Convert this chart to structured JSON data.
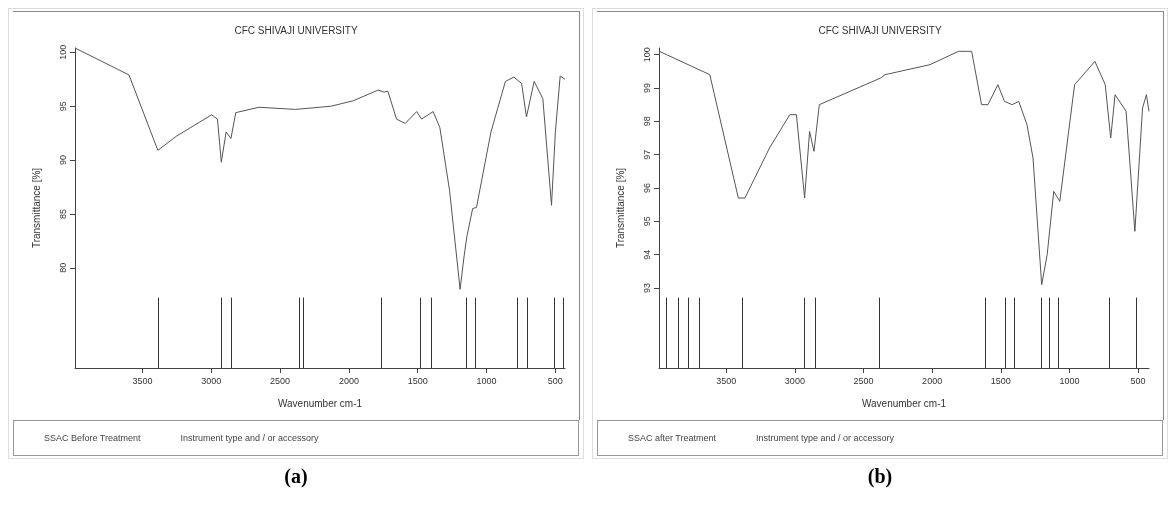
{
  "chart_data": [
    {
      "type": "line",
      "title": "CFC SHIVAJI UNIVERSITY",
      "xlabel": "Wavenumber cm-1",
      "ylabel": "Transmittance [%]",
      "color": "#555555",
      "grid": false,
      "marker": "none",
      "x": [
        3990,
        3598,
        3388,
        3255,
        2997,
        2955,
        2927,
        2892,
        2857,
        2822,
        2654,
        2388,
        2129,
        1969,
        1787,
        1745,
        1717,
        1654,
        1591,
        1507,
        1472,
        1388,
        1339,
        1269,
        1192,
        1164,
        1143,
        1101,
        1073,
        968,
        863,
        801,
        745,
        710,
        654,
        591,
        528,
        500,
        465,
        430
      ],
      "values": [
        100.4,
        97.9,
        90.9,
        92.2,
        94.2,
        93.8,
        89.8,
        92.6,
        92.0,
        94.4,
        94.9,
        94.7,
        95.0,
        95.5,
        96.5,
        96.3,
        96.4,
        93.8,
        93.4,
        94.5,
        93.8,
        94.5,
        93.0,
        87.2,
        78.0,
        81.0,
        82.9,
        85.5,
        85.6,
        92.6,
        97.3,
        97.7,
        97.1,
        94.0,
        97.3,
        95.7,
        85.8,
        92.6,
        97.8,
        97.5
      ],
      "xlim": [
        3990,
        430
      ],
      "xticks": [
        3500,
        3000,
        2500,
        2000,
        1500,
        1000,
        500
      ],
      "ylim": [
        70.7,
        100.4
      ],
      "yticks": [
        100,
        95,
        90,
        85,
        80
      ],
      "ref_lines": [
        {
          "axis": "x",
          "value": 3388
        },
        {
          "axis": "x",
          "value": 2924
        },
        {
          "axis": "x",
          "value": 2858
        },
        {
          "axis": "x",
          "value": 2364
        },
        {
          "axis": "x",
          "value": 2332
        },
        {
          "axis": "x",
          "value": 1766
        },
        {
          "axis": "x",
          "value": 1482
        },
        {
          "axis": "x",
          "value": 1399
        },
        {
          "axis": "x",
          "value": 1146
        },
        {
          "axis": "x",
          "value": 1083
        },
        {
          "axis": "x",
          "value": 780
        },
        {
          "axis": "x",
          "value": 703
        },
        {
          "axis": "x",
          "value": 510
        },
        {
          "axis": "x",
          "value": 444
        }
      ],
      "annotations": [
        "SSAC Before Treatment",
        "Instrument type and / or accessory",
        "(a)"
      ]
    },
    {
      "type": "line",
      "title": "CFC SHIVAJI UNIVERSITY",
      "xlabel": "Wavenumber cm-1",
      "ylabel": "Transmittance [%]",
      "color": "#555555",
      "grid": false,
      "marker": "none",
      "x": [
        3987,
        3620,
        3412,
        3364,
        3185,
        3037,
        2989,
        2929,
        2893,
        2861,
        2822,
        2766,
        2375,
        2343,
        2016,
        1808,
        1744,
        1712,
        1640,
        1593,
        1521,
        1473,
        1417,
        1369,
        1309,
        1265,
        1202,
        1162,
        1114,
        1070,
        962,
        814,
        739,
        699,
        667,
        587,
        523,
        467,
        439,
        420
      ],
      "values": [
        100.1,
        99.4,
        95.7,
        95.7,
        97.2,
        98.2,
        98.2,
        95.7,
        97.7,
        97.1,
        98.5,
        98.6,
        99.3,
        99.4,
        99.7,
        100.1,
        100.1,
        100.1,
        98.5,
        98.5,
        99.1,
        98.6,
        98.5,
        98.6,
        97.9,
        96.9,
        93.1,
        94.0,
        95.9,
        95.6,
        99.1,
        99.8,
        99.1,
        97.5,
        98.8,
        98.3,
        94.7,
        98.4,
        98.8,
        98.3
      ],
      "xlim": [
        3990,
        420
      ],
      "xticks": [
        3500,
        3000,
        2500,
        2000,
        1500,
        1000,
        500
      ],
      "ylim": [
        90.6,
        100.2
      ],
      "yticks": [
        100,
        99,
        98,
        97,
        96,
        95,
        94,
        93
      ],
      "ref_lines": [
        {
          "axis": "x",
          "value": 3935
        },
        {
          "axis": "x",
          "value": 3852
        },
        {
          "axis": "x",
          "value": 3775
        },
        {
          "axis": "x",
          "value": 3700
        },
        {
          "axis": "x",
          "value": 3380
        },
        {
          "axis": "x",
          "value": 2929
        },
        {
          "axis": "x",
          "value": 2853
        },
        {
          "axis": "x",
          "value": 2383
        },
        {
          "axis": "x",
          "value": 1616
        },
        {
          "axis": "x",
          "value": 1469
        },
        {
          "axis": "x",
          "value": 1401
        },
        {
          "axis": "x",
          "value": 1202
        },
        {
          "axis": "x",
          "value": 1145
        },
        {
          "axis": "x",
          "value": 1082
        },
        {
          "axis": "x",
          "value": 707
        },
        {
          "axis": "x",
          "value": 515
        }
      ],
      "annotations": [
        "SSAC after Treatment",
        "Instrument type and / or accessory",
        "(b)"
      ]
    }
  ]
}
